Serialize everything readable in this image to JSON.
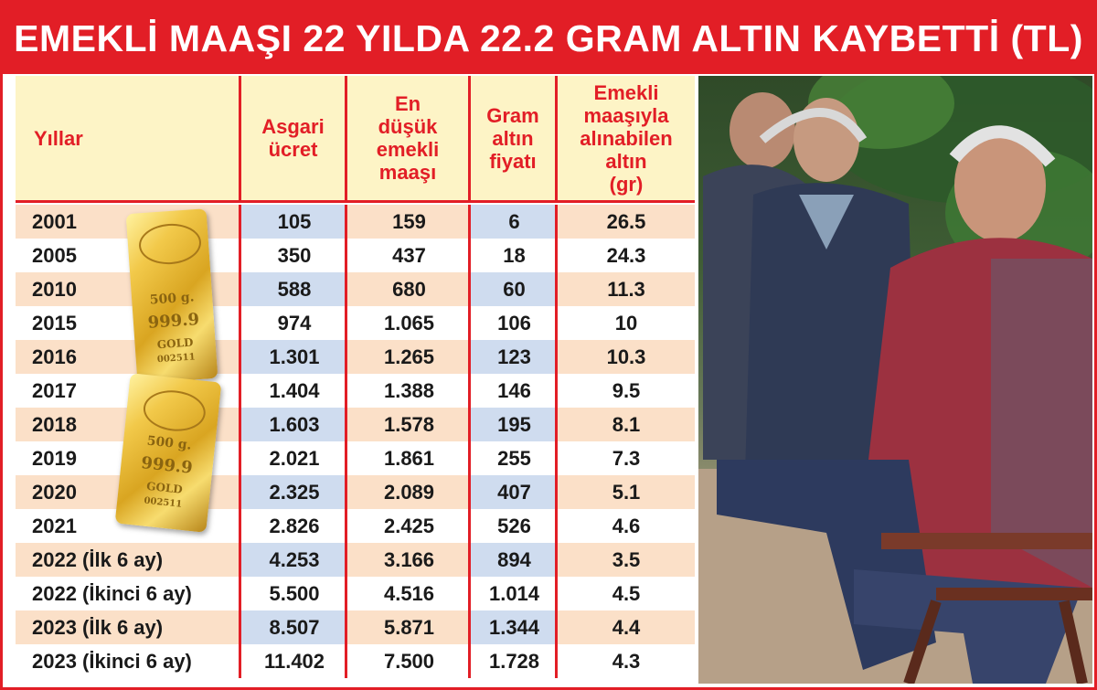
{
  "title": "EMEKLİ MAAŞI 22 YILDA 22.2 GRAM ALTIN KAYBETTİ (TL)",
  "chart_data": {
    "type": "table",
    "title": "EMEKLİ MAAŞI 22 YILDA 22.2 GRAM ALTIN KAYBETTİ (TL)",
    "columns": [
      {
        "key": "year",
        "label": "Yıllar"
      },
      {
        "key": "min_wage",
        "label": "Asgari ücret"
      },
      {
        "key": "min_pension",
        "label": "En düşük emekli maaşı"
      },
      {
        "key": "gold_price",
        "label": "Gram altın fiyatı"
      },
      {
        "key": "gold_grams",
        "label": "Emekli maaşıyla alınabilen altın (gr)"
      }
    ],
    "rows": [
      {
        "year": "2001",
        "min_wage": "105",
        "min_pension": "159",
        "gold_price": "6",
        "gold_grams": "26.5"
      },
      {
        "year": "2005",
        "min_wage": "350",
        "min_pension": "437",
        "gold_price": "18",
        "gold_grams": "24.3"
      },
      {
        "year": "2010",
        "min_wage": "588",
        "min_pension": "680",
        "gold_price": "60",
        "gold_grams": "11.3"
      },
      {
        "year": "2015",
        "min_wage": "974",
        "min_pension": "1.065",
        "gold_price": "106",
        "gold_grams": "10"
      },
      {
        "year": "2016",
        "min_wage": "1.301",
        "min_pension": "1.265",
        "gold_price": "123",
        "gold_grams": "10.3"
      },
      {
        "year": "2017",
        "min_wage": "1.404",
        "min_pension": "1.388",
        "gold_price": "146",
        "gold_grams": "9.5"
      },
      {
        "year": "2018",
        "min_wage": "1.603",
        "min_pension": "1.578",
        "gold_price": "195",
        "gold_grams": "8.1"
      },
      {
        "year": "2019",
        "min_wage": "2.021",
        "min_pension": "1.861",
        "gold_price": "255",
        "gold_grams": "7.3"
      },
      {
        "year": "2020",
        "min_wage": "2.325",
        "min_pension": "2.089",
        "gold_price": "407",
        "gold_grams": "5.1"
      },
      {
        "year": "2021",
        "min_wage": "2.826",
        "min_pension": "2.425",
        "gold_price": "526",
        "gold_grams": "4.6"
      },
      {
        "year": "2022 (İlk 6 ay)",
        "min_wage": "4.253",
        "min_pension": "3.166",
        "gold_price": "894",
        "gold_grams": "3.5"
      },
      {
        "year": "2022 (İkinci 6 ay)",
        "min_wage": "5.500",
        "min_pension": "4.516",
        "gold_price": "1.014",
        "gold_grams": "4.5"
      },
      {
        "year": "2023 (İlk 6 ay)",
        "min_wage": "8.507",
        "min_pension": "5.871",
        "gold_price": "1.344",
        "gold_grams": "4.4"
      },
      {
        "year": "2023 (İkinci 6 ay)",
        "min_wage": "11.402",
        "min_pension": "7.500",
        "gold_price": "1.728",
        "gold_grams": "4.3"
      }
    ]
  },
  "gold_bar": {
    "weight": "500 g.",
    "purity": "999.9",
    "label": "GOLD",
    "serial": "002511"
  },
  "colors": {
    "accent": "#e21e26",
    "header_bg": "#fdf4c6",
    "row_peach": "#fbe0c8",
    "row_blue": "#cfdcef",
    "gold": "#d9a521"
  },
  "photo": {
    "icon": "elderly-men-on-bench-photo"
  }
}
